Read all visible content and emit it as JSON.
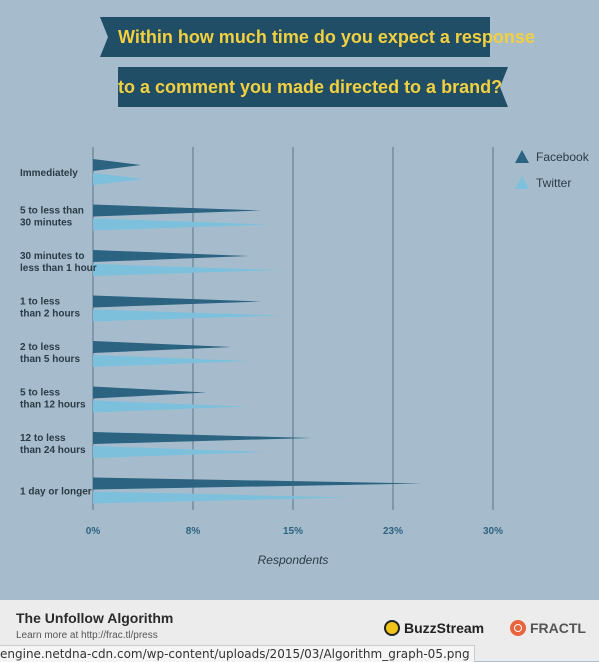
{
  "header": {
    "line1": "Within how much time do you expect a response",
    "line2": "to a comment you made directed to a brand?"
  },
  "colors": {
    "background": "#a6bccd",
    "banner": "#1f4e66",
    "banner_text": "#f4d03f",
    "facebook": "#2b6380",
    "twitter": "#7cc0dc",
    "grid": "#5e7585",
    "axis_text": "#2b6380"
  },
  "chart_data": {
    "type": "bar",
    "orientation": "horizontal",
    "xlabel": "Respondents",
    "ylabel": "",
    "xlim": [
      0,
      30
    ],
    "xticks": [
      {
        "value": 0,
        "label": "0%"
      },
      {
        "value": 7.5,
        "label": "8%"
      },
      {
        "value": 15,
        "label": "15%"
      },
      {
        "value": 22.5,
        "label": "23%"
      },
      {
        "value": 30,
        "label": "30%"
      }
    ],
    "grid": true,
    "legend_position": "top-right",
    "categories": [
      [
        "Immediately"
      ],
      [
        "5 to less than",
        "30 minutes"
      ],
      [
        "30 minutes to",
        "less than 1 hour"
      ],
      [
        "1 to less",
        "than 2 hours"
      ],
      [
        "2 to less",
        "than 5 hours"
      ],
      [
        "5 to less",
        "than 12 hours"
      ],
      [
        "12 to less",
        "than 24 hours"
      ],
      [
        "1 day or longer"
      ]
    ],
    "series": [
      {
        "name": "Facebook",
        "values": [
          3.6,
          12.6,
          11.7,
          12.6,
          10.4,
          8.5,
          16.4,
          24.7
        ]
      },
      {
        "name": "Twitter",
        "values": [
          3.8,
          13.3,
          14.0,
          14.2,
          11.7,
          11.5,
          13.0,
          19.2
        ]
      }
    ]
  },
  "footer": {
    "title": "The Unfollow Algorithm",
    "subtitle": "Learn more at http://frac.tl/press",
    "brand1": "BuzzStream",
    "brand2": "FRACTL"
  },
  "url": "engine.netdna-cdn.com/wp-content/uploads/2015/03/Algorithm_graph-05.png"
}
